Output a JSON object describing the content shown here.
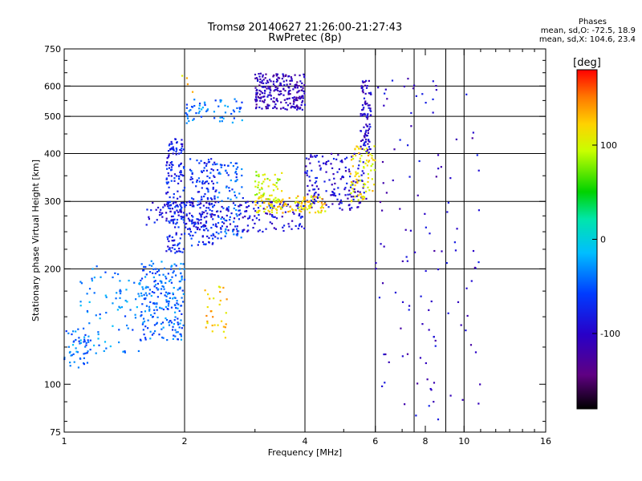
{
  "chart_data": {
    "type": "scatter",
    "title": "Tromsø 20140627 21:26:00-21:27:43",
    "subtitle": "RwPretec (8p)",
    "xlabel": "Frequency [MHz]",
    "ylabel": "Stationary phase Virtual Height [km]",
    "x_scale": "log",
    "y_scale": "log",
    "xlim": [
      1,
      16
    ],
    "ylim": [
      75,
      750
    ],
    "x_ticks": [
      1,
      2,
      4,
      6,
      8,
      10,
      16
    ],
    "x_minor_ticks": [
      3,
      5,
      7,
      9,
      11,
      12,
      13,
      14,
      15
    ],
    "y_ticks": [
      75,
      100,
      200,
      300,
      400,
      500,
      600,
      750
    ],
    "y_minor_ticks": [
      80,
      90,
      125,
      150,
      175,
      225,
      250,
      275,
      350,
      450,
      550,
      650,
      700
    ],
    "grid_x": [
      2,
      4,
      6,
      7.5,
      9,
      10
    ],
    "grid_y": [
      200,
      300,
      400,
      500,
      600
    ],
    "stats": {
      "heading": "Phases",
      "o_line": "mean, sd,O: -72.5, 18.9",
      "x_line": "mean, sd,X: 104.6, 23.4"
    },
    "colorbar": {
      "label": "[deg]",
      "range": [
        -180,
        180
      ],
      "ticks": [
        100,
        0,
        -100
      ],
      "colormap": "rainbow (black-purple-blue-cyan-green-yellow-red)"
    },
    "clusters": [
      {
        "name": "E-region low trace",
        "x": [
          1.0,
          1.15
        ],
        "y": [
          108,
          140
        ],
        "phase": -45,
        "points": 40
      },
      {
        "name": "Es/E slanted trace",
        "x": [
          1.05,
          1.55
        ],
        "y": [
          120,
          205
        ],
        "phase": -35,
        "points": 90
      },
      {
        "name": "E blob",
        "x": [
          1.55,
          2.0
        ],
        "y": [
          130,
          210
        ],
        "phase": -45,
        "points": 220
      },
      {
        "name": "spread-F column 1.9 MHz",
        "x": [
          1.8,
          2.0
        ],
        "y": [
          220,
          440
        ],
        "phase": -75,
        "points": 180
      },
      {
        "name": "spread-F column 2.3 MHz",
        "x": [
          2.05,
          2.4
        ],
        "y": [
          230,
          390
        ],
        "phase": -70,
        "points": 150
      },
      {
        "name": "spread-F column 2.65 MHz",
        "x": [
          2.4,
          2.8
        ],
        "y": [
          240,
          380
        ],
        "phase": -50,
        "points": 90
      },
      {
        "name": "F low trace",
        "x": [
          1.6,
          4.0
        ],
        "y": [
          250,
          300
        ],
        "phase": -90,
        "points": 220
      },
      {
        "name": "F O-mode trace",
        "x": [
          4.0,
          5.7
        ],
        "y": [
          285,
          400
        ],
        "phase": -95,
        "points": 160
      },
      {
        "name": "F O-mode cusp",
        "x": [
          5.5,
          5.85
        ],
        "y": [
          400,
          620
        ],
        "phase": -100,
        "points": 90
      },
      {
        "name": "F X-mode trace",
        "x": [
          3.0,
          4.5
        ],
        "y": [
          280,
          310
        ],
        "phase": 120,
        "points": 120
      },
      {
        "name": "F X-mode upper",
        "x": [
          3.0,
          3.5
        ],
        "y": [
          300,
          360
        ],
        "phase": 95,
        "points": 50
      },
      {
        "name": "F X-mode cusp",
        "x": [
          5.2,
          6.0
        ],
        "y": [
          300,
          420
        ],
        "phase": 115,
        "points": 80
      },
      {
        "name": "multiple echo 3.5 MHz",
        "x": [
          3.0,
          4.0
        ],
        "y": [
          520,
          650
        ],
        "phase": -110,
        "points": 230
      },
      {
        "name": "multiple echo 2.5 MHz",
        "x": [
          2.0,
          2.8
        ],
        "y": [
          480,
          560
        ],
        "phase": -40,
        "points": 60
      },
      {
        "name": "X E-trace",
        "x": [
          2.25,
          2.55
        ],
        "y": [
          130,
          180
        ],
        "phase": 125,
        "points": 30
      },
      {
        "name": "scattered 6-10 MHz",
        "x": [
          6.0,
          11.0
        ],
        "y": [
          80,
          650
        ],
        "phase": -100,
        "points": 120
      },
      {
        "name": "scattered 1.9-2.2 high",
        "x": [
          1.9,
          2.2
        ],
        "y": [
          560,
          650
        ],
        "phase": 120,
        "points": 4
      }
    ]
  }
}
